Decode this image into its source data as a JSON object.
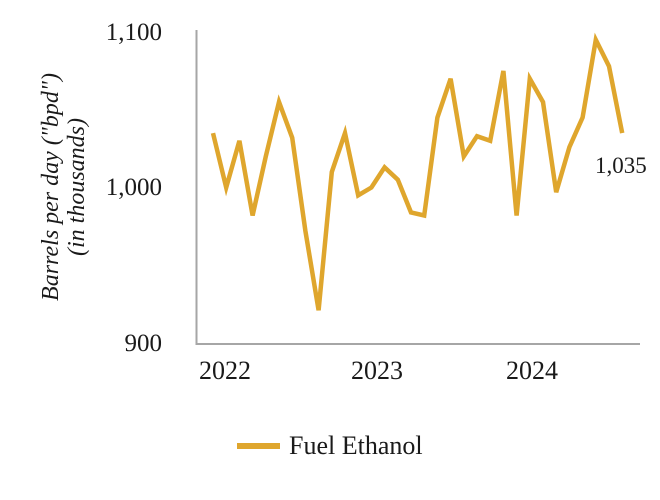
{
  "chart": {
    "y_axis": {
      "title_line1": "Barrels per day (\"bpd\")",
      "title_line2": "(in thousands)",
      "ticks": [
        "1,100",
        "1,000",
        "900"
      ]
    },
    "x_axis": {
      "ticks": [
        "2022",
        "2023",
        "2024"
      ]
    },
    "end_label": "1,035",
    "legend": {
      "label": "Fuel Ethanol"
    },
    "colors": {
      "line": "#DFA62D",
      "axis": "#A6A6A6",
      "text": "#1a1a1a"
    }
  },
  "chart_data": {
    "type": "line",
    "title": "",
    "xlabel": "",
    "ylabel": "Barrels per day (\"bpd\") (in thousands)",
    "ylim": [
      900,
      1100
    ],
    "yticks": [
      900,
      1000,
      1100
    ],
    "xticks": [
      "2022",
      "2023",
      "2024"
    ],
    "grid": false,
    "legend_position": "bottom",
    "x": [
      "2022-01",
      "2022-02",
      "2022-03",
      "2022-04",
      "2022-05",
      "2022-06",
      "2022-07",
      "2022-08",
      "2022-09",
      "2022-10",
      "2022-11",
      "2022-12",
      "2023-01",
      "2023-02",
      "2023-03",
      "2023-04",
      "2023-05",
      "2023-06",
      "2023-07",
      "2023-08",
      "2023-09",
      "2023-10",
      "2023-11",
      "2023-12",
      "2024-01",
      "2024-02",
      "2024-03",
      "2024-04",
      "2024-05",
      "2024-06",
      "2024-07",
      "2024-08"
    ],
    "series": [
      {
        "name": "Fuel Ethanol",
        "values": [
          1035,
          1000,
          1030,
          982,
          1020,
          1055,
          1032,
          972,
          921,
          1010,
          1035,
          995,
          1000,
          1013,
          1005,
          984,
          982,
          1045,
          1070,
          1020,
          1033,
          1030,
          1075,
          982,
          1070,
          1055,
          997,
          1026,
          1045,
          1095,
          1078,
          1035
        ]
      }
    ],
    "annotations": [
      {
        "text": "1,035",
        "series": "Fuel Ethanol",
        "point_index": 31
      }
    ]
  }
}
